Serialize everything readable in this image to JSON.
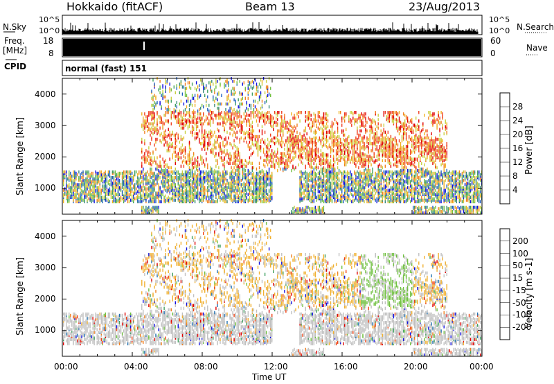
{
  "header": {
    "station": "Hokkaido (fitACF)",
    "beam": "Beam 13",
    "date": "23/Aug/2013"
  },
  "noise_panel": {
    "left_label": "N.Sky",
    "right_label": "N.Search",
    "left_ticks": [
      "10^5",
      "10^0"
    ],
    "right_ticks": [
      "10^5",
      "10^0"
    ]
  },
  "freq_panel": {
    "left_label_1": "Freq.",
    "left_label_2": "[MHz]",
    "left_ticks": [
      "18",
      "8"
    ],
    "right_label": "Nave",
    "right_ticks": [
      "60",
      "0"
    ]
  },
  "cpid_panel": {
    "label": "CPID",
    "value": "normal (fast) 151"
  },
  "power_panel": {
    "ylabel": "Slant Range [km]",
    "yticks": [
      "1000",
      "2000",
      "3000",
      "4000"
    ],
    "colorbar_label": "Power [dB]",
    "colorbar_ticks": [
      "4",
      "8",
      "12",
      "16",
      "20",
      "24",
      "28"
    ],
    "colors": [
      "#1010e0",
      "#2060c0",
      "#3a8a7a",
      "#40a060",
      "#70c040",
      "#c8d040",
      "#f0b020",
      "#f08020",
      "#f04020",
      "#e00000"
    ]
  },
  "velocity_panel": {
    "ylabel": "Slant Range [km]",
    "yticks": [
      "1000",
      "2000",
      "3000",
      "4000"
    ],
    "colorbar_label": "Velocity [m s-1]",
    "colorbar_ticks": [
      "-200",
      "-100",
      "-50",
      "-15",
      "15",
      "50",
      "100",
      "200"
    ],
    "colors": [
      "#e00000",
      "#f04010",
      "#f08020",
      "#f0b030",
      "#c0c0c0",
      "#70c040",
      "#40a060",
      "#2070b0",
      "#1010e0"
    ]
  },
  "time_axis": {
    "label": "Time UT",
    "ticks": [
      "00:00",
      "04:00",
      "08:00",
      "12:00",
      "16:00",
      "20:00",
      "00:00"
    ]
  },
  "chart_data": {
    "type": "heatmap",
    "title": "Hokkaido (fitACF)",
    "xlabel": "Time UT",
    "ylabel": "Slant Range [km]",
    "xlim": [
      "00:00",
      "24:00"
    ],
    "ylim": [
      180,
      4500
    ],
    "features": [
      {
        "panel": "power",
        "name": "near-range band",
        "t_start": 0,
        "t_end": 24,
        "range_low": 600,
        "range_high": 1500
      },
      {
        "panel": "power",
        "name": "mid-range arcs",
        "t_start": 4,
        "t_end": 22,
        "range_low": 1800,
        "range_high": 3500
      },
      {
        "panel": "velocity",
        "name": "low-velocity band",
        "t_start": 0,
        "t_end": 24,
        "range_low": 500,
        "range_high": 1600
      }
    ]
  }
}
